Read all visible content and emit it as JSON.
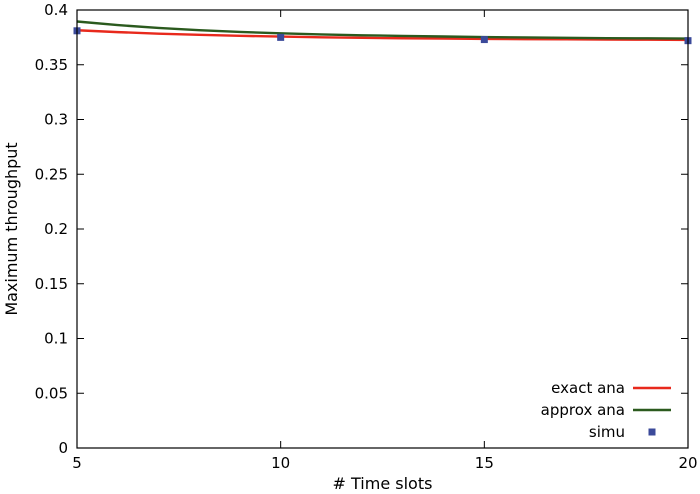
{
  "chart_data": {
    "type": "line",
    "title": "",
    "xlabel": "# Time slots",
    "ylabel": "Maximum throughput",
    "xlim": [
      5,
      20
    ],
    "ylim": [
      0,
      0.4
    ],
    "xticks": [
      5,
      10,
      15,
      20
    ],
    "yticks": [
      0,
      0.05,
      0.1,
      0.15,
      0.2,
      0.25,
      0.3,
      0.35,
      0.4
    ],
    "ytick_labels": [
      "0",
      "0.05",
      "0.1",
      "0.15",
      "0.2",
      "0.25",
      "0.3",
      "0.35",
      "0.4"
    ],
    "grid": false,
    "legend": "bottom-right",
    "series": [
      {
        "name": "exact ana",
        "kind": "line",
        "color": "#e8291c",
        "x": [
          5,
          6,
          7,
          8,
          9,
          10,
          11,
          12,
          13,
          14,
          15,
          16,
          17,
          18,
          19,
          20
        ],
        "y": [
          0.3815,
          0.3798,
          0.3784,
          0.3773,
          0.3764,
          0.3757,
          0.3751,
          0.3746,
          0.3742,
          0.3739,
          0.3736,
          0.3734,
          0.3732,
          0.373,
          0.3729,
          0.3727
        ]
      },
      {
        "name": "approx ana",
        "kind": "line",
        "color": "#2b5a1e",
        "x": [
          5,
          6,
          7,
          8,
          9,
          10,
          11,
          12,
          13,
          14,
          15,
          16,
          17,
          18,
          19,
          20
        ],
        "y": [
          0.3895,
          0.3862,
          0.3836,
          0.3816,
          0.38,
          0.3787,
          0.3777,
          0.3769,
          0.3763,
          0.3758,
          0.3753,
          0.3749,
          0.3746,
          0.3743,
          0.3741,
          0.3739
        ]
      },
      {
        "name": "simu",
        "kind": "marker",
        "color": "#3b4a9a",
        "x": [
          5,
          10,
          15,
          20
        ],
        "y": [
          0.381,
          0.375,
          0.373,
          0.372
        ]
      }
    ]
  }
}
